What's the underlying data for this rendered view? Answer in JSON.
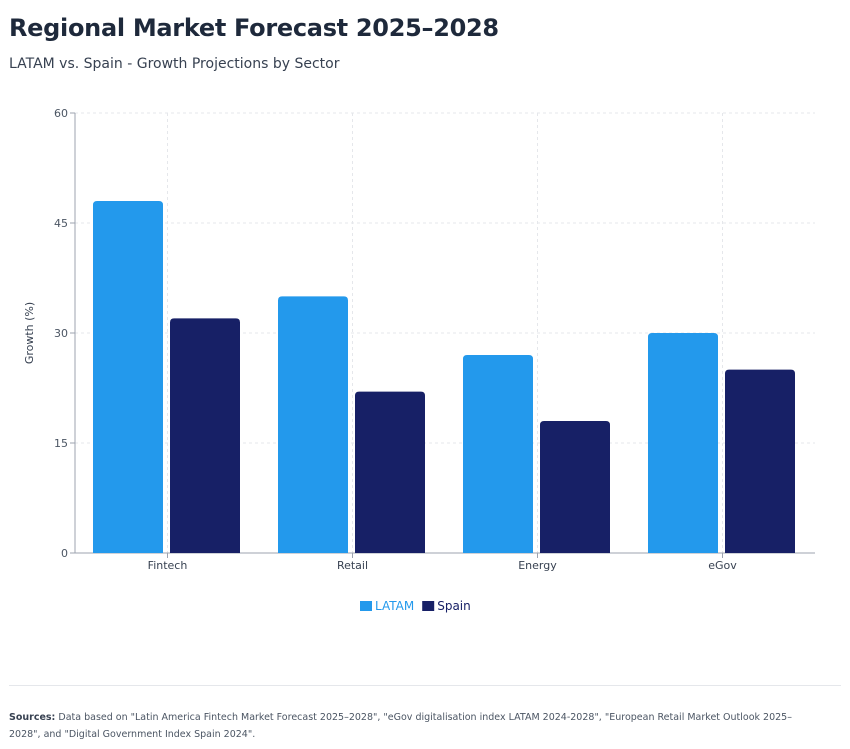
{
  "title": "Regional Market Forecast 2025–2028",
  "subtitle": "LATAM vs. Spain - Growth Projections by Sector",
  "sources_label": "Sources:",
  "sources_text": "Data based on \"Latin America Fintech Market Forecast 2025–2028\", \"eGov digitalisation index LATAM 2024-2028\", \"European Retail Market Outlook 2025–2028\", and \"Digital Government Index Spain 2024\".",
  "chart_data": {
    "type": "bar",
    "categories": [
      "Fintech",
      "Retail",
      "Energy",
      "eGov"
    ],
    "series": [
      {
        "name": "LATAM",
        "values": [
          48,
          35,
          27,
          30
        ],
        "color": "#2399ec"
      },
      {
        "name": "Spain",
        "values": [
          32,
          22,
          18,
          25
        ],
        "color": "#172066"
      }
    ],
    "ylabel": "Growth (%)",
    "xlabel": "",
    "ylim": [
      0,
      60
    ],
    "yticks": [
      0,
      15,
      30,
      45,
      60
    ],
    "grid": true,
    "legend": "bottom"
  }
}
